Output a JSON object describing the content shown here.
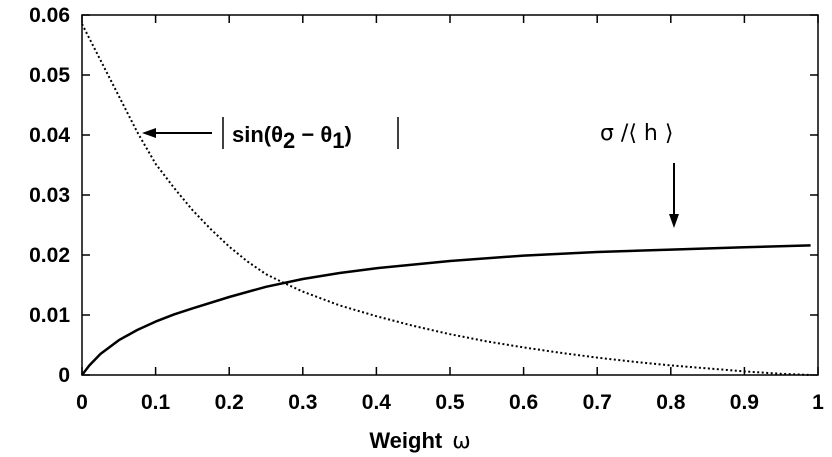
{
  "chart_data": {
    "type": "line",
    "xlabel": "Weight",
    "xlabel_symbol": "ω",
    "ylabel": "",
    "xlim": [
      0,
      1
    ],
    "ylim": [
      0,
      0.06
    ],
    "x_ticks": [
      0,
      0.1,
      0.2,
      0.3,
      0.4,
      0.5,
      0.6,
      0.7,
      0.8,
      0.9,
      1
    ],
    "x_tick_labels": [
      "0",
      "0.1",
      "0.2",
      "0.3",
      "0.4",
      "0.5",
      "0.6",
      "0.7",
      "0.8",
      "0.9",
      "1"
    ],
    "y_ticks": [
      0,
      0.01,
      0.02,
      0.03,
      0.04,
      0.05,
      0.06
    ],
    "y_tick_labels": [
      "0",
      "0.01",
      "0.02",
      "0.03",
      "0.04",
      "0.05",
      "0.06"
    ],
    "grid": false,
    "series": [
      {
        "style": "dotted",
        "x": [
          0,
          0.025,
          0.05,
          0.075,
          0.1,
          0.125,
          0.15,
          0.175,
          0.2,
          0.225,
          0.25,
          0.275,
          0.3,
          0.35,
          0.4,
          0.45,
          0.5,
          0.55,
          0.6,
          0.65,
          0.7,
          0.75,
          0.8,
          0.85,
          0.9,
          0.95,
          0.99
        ],
        "y": [
          0.0585,
          0.0525,
          0.0465,
          0.0405,
          0.0352,
          0.0312,
          0.0275,
          0.0243,
          0.0214,
          0.0189,
          0.0168,
          0.0153,
          0.0139,
          0.0116,
          0.0098,
          0.0082,
          0.0068,
          0.0056,
          0.0046,
          0.0037,
          0.0029,
          0.0022,
          0.0016,
          0.0011,
          0.0006,
          0.0002,
          0.0
        ]
      },
      {
        "style": "solid",
        "x": [
          0,
          0.01,
          0.025,
          0.05,
          0.075,
          0.1,
          0.125,
          0.15,
          0.2,
          0.25,
          0.3,
          0.35,
          0.4,
          0.5,
          0.6,
          0.7,
          0.8,
          0.9,
          0.99
        ],
        "y": [
          0.0,
          0.0016,
          0.0035,
          0.0058,
          0.0075,
          0.0089,
          0.0101,
          0.0111,
          0.013,
          0.0147,
          0.016,
          0.017,
          0.0178,
          0.019,
          0.0199,
          0.0205,
          0.0209,
          0.0213,
          0.0216
        ]
      }
    ],
    "annotations": [
      {
        "text_main": "sin(θ",
        "sub1": "2",
        "mid": " − θ",
        "sub2": "1",
        "close": ")",
        "arrow": "left"
      },
      {
        "text": "σ /⟨ h ⟩",
        "arrow": "down"
      }
    ]
  }
}
